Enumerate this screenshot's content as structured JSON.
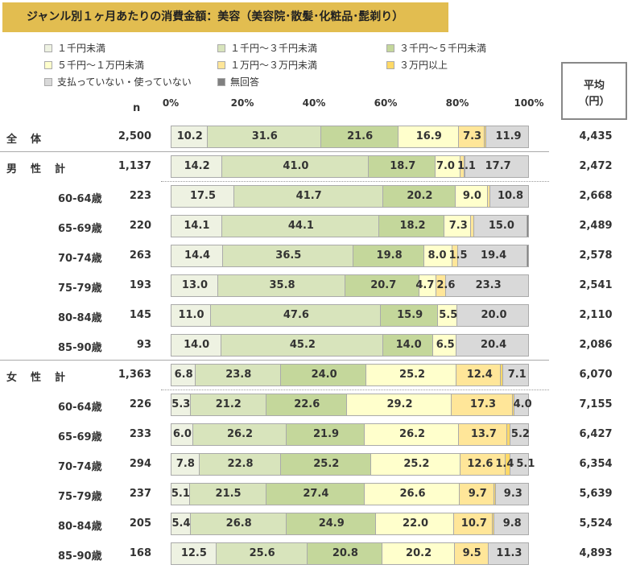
{
  "chart_data": {
    "type": "bar",
    "orientation": "horizontal",
    "stacked": true,
    "title": "ジャンル別１ヶ月あたりの消費金額：美容（美容院･散髪･化粧品･髭剃り）",
    "xlabel": "",
    "ylabel": "",
    "xlim": [
      0,
      100
    ],
    "ticks": [
      "0%",
      "20%",
      "40%",
      "60%",
      "80%",
      "100%"
    ],
    "n_header": "n",
    "mean_header": [
      "平均",
      "（円）"
    ],
    "legend_position": "top",
    "series": [
      {
        "name": "１千円未満",
        "color": "#EEF2E2"
      },
      {
        "name": "１千円～３千円未満",
        "color": "#D8E4BC"
      },
      {
        "name": "３千円～５千円未満",
        "color": "#C4D79B"
      },
      {
        "name": "５千円～１万円未満",
        "color": "#FFFFCC"
      },
      {
        "name": "１万円～３万円未満",
        "color": "#FFE699"
      },
      {
        "name": "３万円以上",
        "color": "#FFD966"
      },
      {
        "name": "支払っていない・使っていない",
        "color": "#D9D9D9"
      },
      {
        "name": "無回答",
        "color": "#808080"
      }
    ],
    "rows": [
      {
        "group": "全　体",
        "label": "",
        "n": "2,500",
        "mean": "4,435",
        "values": [
          10.2,
          31.6,
          21.6,
          16.9,
          7.3,
          0.5,
          11.9,
          0
        ]
      },
      {
        "group": "男　性　計",
        "label": "",
        "n": "1,137",
        "mean": "2,472",
        "values": [
          14.2,
          41.0,
          18.7,
          7.0,
          1.1,
          0.3,
          17.7,
          0
        ]
      },
      {
        "group": "",
        "label": "60-64歳",
        "n": "223",
        "mean": "2,668",
        "values": [
          17.5,
          41.7,
          20.2,
          9.0,
          0.8,
          0,
          10.8,
          0
        ]
      },
      {
        "group": "",
        "label": "65-69歳",
        "n": "220",
        "mean": "2,489",
        "values": [
          14.1,
          44.1,
          18.2,
          7.3,
          0.9,
          0,
          15.0,
          0.4
        ]
      },
      {
        "group": "",
        "label": "70-74歳",
        "n": "263",
        "mean": "2,578",
        "values": [
          14.4,
          36.5,
          19.8,
          8.0,
          1.5,
          0,
          19.4,
          0.4
        ]
      },
      {
        "group": "",
        "label": "75-79歳",
        "n": "193",
        "mean": "2,541",
        "values": [
          13.0,
          35.8,
          20.7,
          4.7,
          2.6,
          0,
          23.3,
          0
        ]
      },
      {
        "group": "",
        "label": "80-84歳",
        "n": "145",
        "mean": "2,110",
        "values": [
          11.0,
          47.6,
          15.9,
          5.5,
          0,
          0,
          20.0,
          0
        ]
      },
      {
        "group": "",
        "label": "85-90歳",
        "n": "93",
        "mean": "2,086",
        "values": [
          14.0,
          45.2,
          14.0,
          6.5,
          0,
          0,
          20.4,
          0
        ]
      },
      {
        "group": "女　性　計",
        "label": "",
        "n": "1,363",
        "mean": "6,070",
        "values": [
          6.8,
          23.8,
          24.0,
          25.2,
          12.4,
          0.7,
          7.1,
          0
        ]
      },
      {
        "group": "",
        "label": "60-64歳",
        "n": "226",
        "mean": "7,155",
        "values": [
          5.3,
          21.2,
          22.6,
          29.2,
          17.3,
          0.4,
          4.0,
          0
        ]
      },
      {
        "group": "",
        "label": "65-69歳",
        "n": "233",
        "mean": "6,427",
        "values": [
          6.0,
          26.2,
          21.9,
          26.2,
          13.7,
          0.8,
          5.2,
          0
        ]
      },
      {
        "group": "",
        "label": "70-74歳",
        "n": "294",
        "mean": "6,354",
        "values": [
          7.8,
          22.8,
          25.2,
          25.2,
          12.6,
          1.4,
          5.1,
          0
        ]
      },
      {
        "group": "",
        "label": "75-79歳",
        "n": "237",
        "mean": "5,639",
        "values": [
          5.1,
          21.5,
          27.4,
          26.6,
          9.7,
          0.4,
          9.3,
          0
        ]
      },
      {
        "group": "",
        "label": "80-84歳",
        "n": "205",
        "mean": "5,524",
        "values": [
          5.4,
          26.8,
          24.9,
          22.0,
          10.7,
          0.4,
          9.8,
          0
        ]
      },
      {
        "group": "",
        "label": "85-90歳",
        "n": "168",
        "mean": "4,893",
        "values": [
          12.5,
          25.6,
          20.8,
          20.2,
          9.5,
          0,
          11.3,
          0
        ]
      }
    ]
  }
}
